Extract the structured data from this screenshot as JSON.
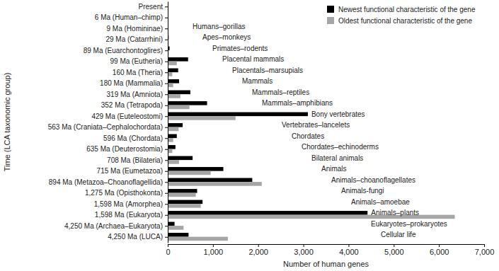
{
  "chart_data": {
    "type": "bar",
    "orientation": "horizontal",
    "x_label": "Number of human genes",
    "y_label": "Time (LCA taxonomic group)",
    "categories": [
      "Present",
      "6 Ma (Human–chimp)",
      "9 Ma (Homininae)",
      "29 Ma (Catarrhini)",
      "89 Ma (Euarchontoglires)",
      "99 Ma (Eutheria)",
      "160 Ma (Theria)",
      "180 Ma (Mammalia)",
      "319 Ma (Amniota)",
      "352 Ma (Tetrapoda)",
      "429 Ma (Euteleostomi)",
      "563 Ma (Craniata–Cephalochordata)",
      "596 Ma (Chordata)",
      "635 Ma (Deuterostomia)",
      "708 Ma (Bilateria)",
      "715 Ma (Eumetazoa)",
      "894 Ma (Metazoa–Choanoflagellida)",
      "1,275 Ma (Opisthokonta)",
      "1,598 Ma (Amorphea)",
      "1,598 Ma (Eukaryota)",
      "4,250 Ma (Archaea–Eukaryota)",
      "4,250 Ma (LUCA)"
    ],
    "annotations": [
      null,
      null,
      "Humans–gorillas",
      "Apes–monkeys",
      "Primates–rodents",
      "Placental mammals",
      "Placentals–marsupials",
      "Mammals",
      "Mammals–reptiles",
      "Mammals–amphibians",
      "Bony vertebrates",
      "Vertebrates–lancelets",
      "Chordates",
      "Chordates–echinoderms",
      "Bilateral animals",
      "Animals",
      "Animals–choanoflagellates",
      "Animals-fungi",
      "Animals–amoebae",
      "Animals–plants",
      "Eukaryotes–prokaryotes",
      "Cellular life"
    ],
    "series": [
      {
        "name": "Newest functional characteristic of the gene",
        "color": "#000000",
        "values": [
          null,
          0,
          10,
          20,
          40,
          450,
          230,
          250,
          500,
          870,
          3100,
          330,
          200,
          170,
          550,
          1230,
          1870,
          650,
          770,
          4420,
          150,
          460
        ]
      },
      {
        "name": "Oldest functional characteristic of the gene",
        "color": "#a6a6a6",
        "values": [
          null,
          0,
          5,
          10,
          20,
          200,
          100,
          120,
          280,
          480,
          1500,
          240,
          120,
          100,
          250,
          950,
          2080,
          620,
          730,
          6350,
          350,
          1330
        ]
      }
    ],
    "xlim": [
      0,
      7000
    ],
    "xticks": [
      0,
      {
        "value": 1000,
        "label": "1,000"
      },
      {
        "value": 2000,
        "label": "2,000"
      },
      {
        "value": 3000,
        "label": "3,000"
      },
      {
        "value": 4000,
        "label": "4,000"
      },
      {
        "value": 5000,
        "label": "5,000"
      },
      {
        "value": 6000,
        "label": "6,000"
      },
      {
        "value": 7000,
        "label": "7,000"
      }
    ],
    "legend": "upper right"
  }
}
